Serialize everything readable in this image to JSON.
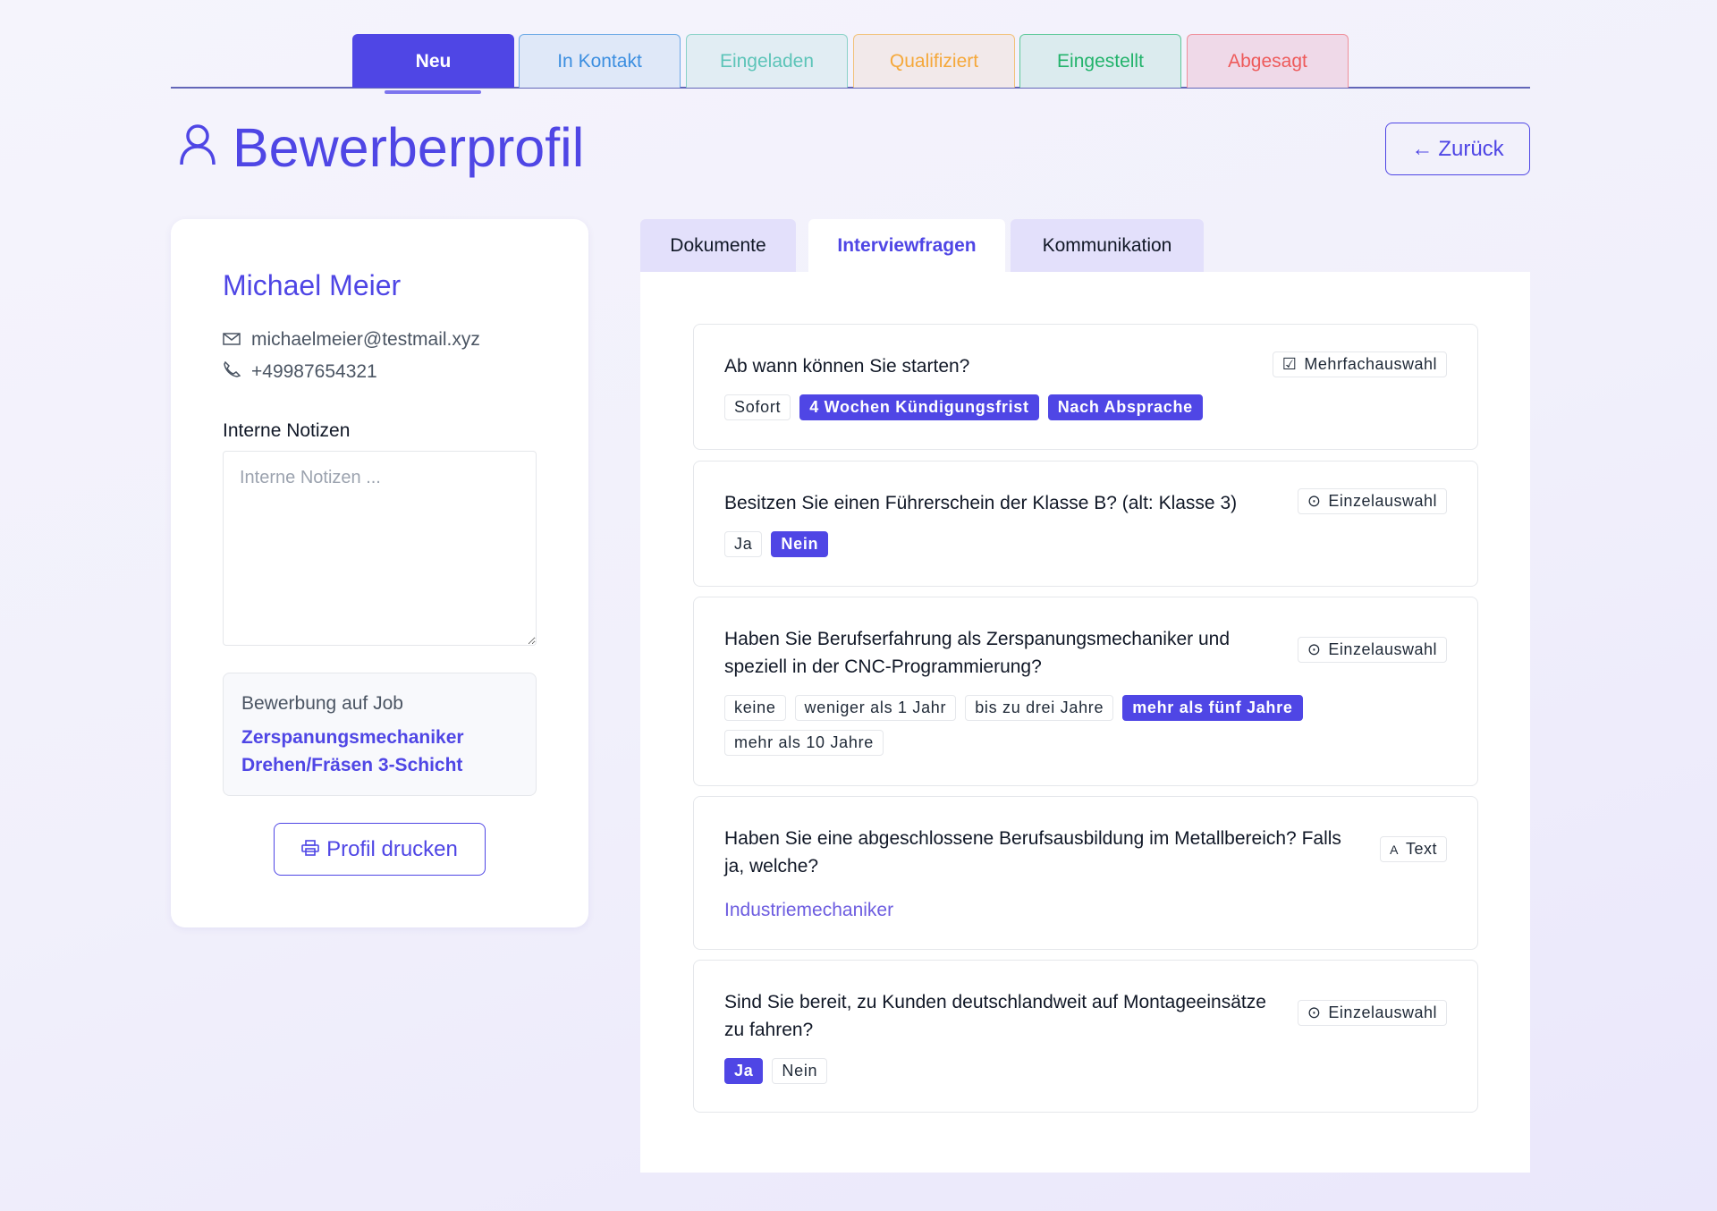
{
  "status_tabs": [
    {
      "label": "Neu",
      "color": "#ffffff",
      "bg": "#4f46e5",
      "border": "#4f46e5"
    },
    {
      "label": "In Kontakt",
      "color": "#3b8ee0",
      "bg": "#dfe8f8",
      "border": "#6aa8e6"
    },
    {
      "label": "Eingeladen",
      "color": "#5cc4b8",
      "bg": "#e1edf3",
      "border": "#8ad2c8"
    },
    {
      "label": "Qualifiziert",
      "color": "#f5a83a",
      "bg": "#f2e9ea",
      "border": "#f2c27a"
    },
    {
      "label": "Eingestellt",
      "color": "#22b36b",
      "bg": "#dbebee",
      "border": "#5cc898"
    },
    {
      "label": "Abgesagt",
      "color": "#ee5a5a",
      "bg": "#efd9e8",
      "border": "#ef8f9a"
    }
  ],
  "header": {
    "title": "Bewerberprofil",
    "title_icon": "user-icon",
    "back_label": "Zurück",
    "back_icon": "arrow-left-icon"
  },
  "candidate": {
    "name": "Michael Meier",
    "email": "michaelmeier@testmail.xyz",
    "phone": "+49987654321",
    "notes_label": "Interne Notizen",
    "notes_placeholder": "Interne Notizen ...",
    "notes_value": "",
    "job_label": "Bewerbung auf Job",
    "job_title_line1": "Zerspanungsmechaniker",
    "job_title_line2": "Drehen/Fräsen 3-Schicht",
    "print_label": "Profil drucken"
  },
  "content_tabs": [
    {
      "label": "Dokumente",
      "active": false
    },
    {
      "label": "Interviewfragen",
      "active": true
    },
    {
      "label": "Kommunikation",
      "active": false
    }
  ],
  "questions": [
    {
      "text": "Ab wann können Sie starten?",
      "type": "Mehrfachauswahl",
      "type_icon": "checkbox-icon",
      "options": [
        {
          "label": "Sofort",
          "selected": false
        },
        {
          "label": "4 Wochen Kündigungsfrist",
          "selected": true
        },
        {
          "label": "Nach Absprache",
          "selected": true
        }
      ]
    },
    {
      "text": "Besitzen Sie einen Führerschein der Klasse B? (alt: Klasse 3)",
      "type": "Einzelauswahl",
      "type_icon": "radio-icon",
      "options": [
        {
          "label": "Ja",
          "selected": false
        },
        {
          "label": "Nein",
          "selected": true
        }
      ]
    },
    {
      "text": "Haben Sie Berufserfahrung als Zerspanungsmechaniker und speziell in der CNC-Programmierung?",
      "type": "Einzelauswahl",
      "type_icon": "radio-icon",
      "options": [
        {
          "label": "keine",
          "selected": false
        },
        {
          "label": "weniger als 1 Jahr",
          "selected": false
        },
        {
          "label": "bis zu drei Jahre",
          "selected": false
        },
        {
          "label": "mehr als fünf Jahre",
          "selected": true
        },
        {
          "label": "mehr als 10 Jahre",
          "selected": false
        }
      ]
    },
    {
      "text": "Haben Sie eine abgeschlossene Berufsausbildung im Metallbereich? Falls ja, welche?",
      "type": "Text",
      "type_icon": "text-icon",
      "answer": "Industriemechaniker"
    },
    {
      "text": "Sind Sie bereit, zu Kunden deutschlandweit auf Montageeinsätze zu fahren?",
      "type": "Einzelauswahl",
      "type_icon": "radio-icon",
      "options": [
        {
          "label": "Ja",
          "selected": true
        },
        {
          "label": "Nein",
          "selected": false
        }
      ]
    }
  ],
  "accent": "#4f46e5"
}
